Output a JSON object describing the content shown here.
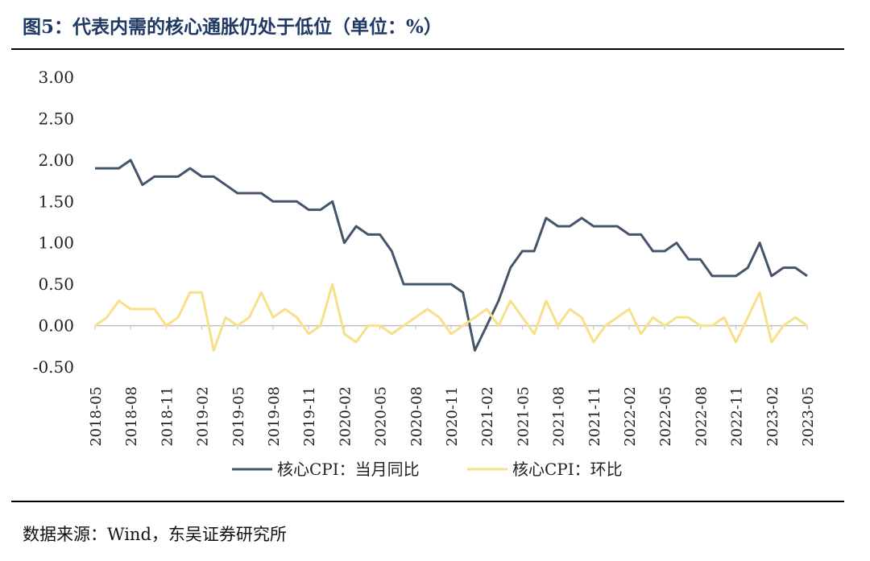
{
  "title": "图5：代表内需的核心通胀仍处于低位（单位：%）",
  "source": "数据来源：Wind，东吴证券研究所",
  "colors": {
    "yoy": "#44546a",
    "mom": "#f7e08a"
  },
  "chart_data": {
    "type": "line",
    "x": [
      "2018-05",
      "2018-06",
      "2018-07",
      "2018-08",
      "2018-09",
      "2018-10",
      "2018-11",
      "2018-12",
      "2019-01",
      "2019-02",
      "2019-03",
      "2019-04",
      "2019-05",
      "2019-06",
      "2019-07",
      "2019-08",
      "2019-09",
      "2019-10",
      "2019-11",
      "2019-12",
      "2020-01",
      "2020-02",
      "2020-03",
      "2020-04",
      "2020-05",
      "2020-06",
      "2020-07",
      "2020-08",
      "2020-09",
      "2020-10",
      "2020-11",
      "2020-12",
      "2021-01",
      "2021-02",
      "2021-03",
      "2021-04",
      "2021-05",
      "2021-06",
      "2021-07",
      "2021-08",
      "2021-09",
      "2021-10",
      "2021-11",
      "2021-12",
      "2022-01",
      "2022-02",
      "2022-03",
      "2022-04",
      "2022-05",
      "2022-06",
      "2022-07",
      "2022-08",
      "2022-09",
      "2022-10",
      "2022-11",
      "2022-12",
      "2023-01",
      "2023-02",
      "2023-03",
      "2023-04",
      "2023-05"
    ],
    "tick_labels": [
      "2018-05",
      "2018-08",
      "2018-11",
      "2019-02",
      "2019-05",
      "2019-08",
      "2019-11",
      "2020-02",
      "2020-05",
      "2020-08",
      "2020-11",
      "2021-02",
      "2021-05",
      "2021-08",
      "2021-11",
      "2022-02",
      "2022-05",
      "2022-08",
      "2022-11",
      "2023-02",
      "2023-05"
    ],
    "series": [
      {
        "name": "核心CPI：当月同比",
        "values": [
          1.9,
          1.9,
          1.9,
          2.0,
          1.7,
          1.8,
          1.8,
          1.8,
          1.9,
          1.8,
          1.8,
          1.7,
          1.6,
          1.6,
          1.6,
          1.5,
          1.5,
          1.5,
          1.4,
          1.4,
          1.5,
          1.0,
          1.2,
          1.1,
          1.1,
          0.9,
          0.5,
          0.5,
          0.5,
          0.5,
          0.5,
          0.4,
          -0.3,
          0.0,
          0.3,
          0.7,
          0.9,
          0.9,
          1.3,
          1.2,
          1.2,
          1.3,
          1.2,
          1.2,
          1.2,
          1.1,
          1.1,
          0.9,
          0.9,
          1.0,
          0.8,
          0.8,
          0.6,
          0.6,
          0.6,
          0.7,
          1.0,
          0.6,
          0.7,
          0.7,
          0.6
        ]
      },
      {
        "name": "核心CPI：环比",
        "values": [
          0.0,
          0.1,
          0.3,
          0.2,
          0.2,
          0.2,
          0.0,
          0.1,
          0.4,
          0.4,
          -0.3,
          0.1,
          0.0,
          0.1,
          0.4,
          0.1,
          0.2,
          0.1,
          -0.1,
          0.0,
          0.5,
          -0.1,
          -0.2,
          0.0,
          0.0,
          -0.1,
          0.0,
          0.1,
          0.2,
          0.1,
          -0.1,
          0.0,
          0.1,
          0.2,
          0.0,
          0.3,
          0.1,
          -0.1,
          0.3,
          0.0,
          0.2,
          0.1,
          -0.2,
          0.0,
          0.1,
          0.2,
          -0.1,
          0.1,
          0.0,
          0.1,
          0.1,
          0.0,
          0.0,
          0.1,
          -0.2,
          0.1,
          0.4,
          -0.2,
          0.0,
          0.1,
          0.0
        ]
      }
    ],
    "y_ticks": [
      "3.00",
      "2.50",
      "2.00",
      "1.50",
      "1.00",
      "0.50",
      "0.00",
      "-0.50"
    ],
    "ylim": [
      -0.5,
      3.0
    ],
    "grid": false,
    "legend": "bottom"
  }
}
